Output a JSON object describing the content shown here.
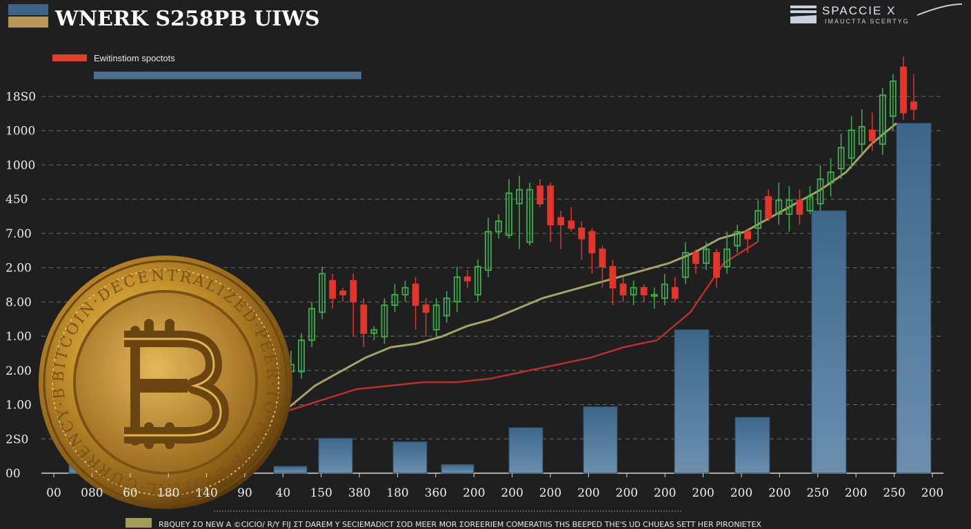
{
  "header": {
    "title": "WNERK S258PB UIWS",
    "title_swatches": [
      "#3f6384",
      "#b8965a"
    ],
    "brand_name": "SPACCIE X",
    "brand_tagline": "IMAUCTTA SCERTYG"
  },
  "legend": {
    "entries": [
      {
        "label": "Ewitinstiom spoctots",
        "color": "#e0402a"
      },
      {
        "label": "",
        "color": "#4a6d8c"
      }
    ]
  },
  "footer": {
    "note": "RBQUEY ΣO NEW A ©CICIO/ R/Y FIJ ΣT DAREM Y SECIEMADICT ΣOD MEER MOR ΣOREERIEM COMERATIIS THS BEEPED THE'S UD CHUEAS SETT HER PIRONIETEX",
    "swatch_color": "#a29b5e"
  },
  "colors": {
    "background": "#1f1f1f",
    "grid": "#6a6a6a",
    "candle_up": "#3fae4f",
    "candle_down": "#e2352b",
    "moving_avg_1": "#a6a468",
    "moving_avg_2": "#b8312c",
    "bar": "#4a7296",
    "coin_gold": "#c9962f"
  },
  "icons": {
    "coin": "bitcoin-coin-icon",
    "brand": "spacex-logo-icon"
  },
  "chart_data": {
    "type": "bar",
    "title": "WNERK S258PB UIWS",
    "y_tick_labels": [
      "18S0",
      "1000",
      "1000",
      "450",
      "7.00",
      "2.00",
      "8.00",
      "1.00",
      "2.00",
      "1.00",
      "2S0",
      "00"
    ],
    "x_tick_labels": [
      "00",
      "080",
      "60",
      "180",
      "140",
      "90",
      "40",
      "150",
      "380",
      "180",
      "360",
      "200",
      "200",
      "200",
      "200",
      "200",
      "200",
      "200",
      "200",
      "200",
      "250",
      "200",
      "250",
      "200"
    ],
    "ylim": [
      0,
      11
    ],
    "grid": "horizontal dashed",
    "legend_position": "top-left",
    "bars": {
      "values": [
        0.3,
        0.4,
        0.6,
        0.55,
        0.2,
        1.0,
        0.9,
        0.25,
        1.3,
        1.9,
        4.1,
        1.6,
        7.5,
        10.0
      ]
    },
    "candles": [
      {
        "o": 2.9,
        "c": 3.1,
        "h": 3.5,
        "l": 2.6
      },
      {
        "o": 2.9,
        "c": 3.8,
        "h": 4.0,
        "l": 2.7
      },
      {
        "o": 3.8,
        "c": 4.7,
        "h": 4.9,
        "l": 3.6
      },
      {
        "o": 4.6,
        "c": 5.7,
        "h": 5.9,
        "l": 4.4
      },
      {
        "o": 5.5,
        "c": 5.0,
        "h": 5.7,
        "l": 4.7
      },
      {
        "o": 5.2,
        "c": 5.1,
        "h": 5.3,
        "l": 4.9
      },
      {
        "o": 5.5,
        "c": 4.9,
        "h": 5.7,
        "l": 3.9
      },
      {
        "o": 4.8,
        "c": 4.0,
        "h": 5.0,
        "l": 3.6
      },
      {
        "o": 4.0,
        "c": 4.1,
        "h": 4.2,
        "l": 3.8
      },
      {
        "o": 3.9,
        "c": 4.8,
        "h": 5.0,
        "l": 3.7
      },
      {
        "o": 4.8,
        "c": 5.1,
        "h": 5.4,
        "l": 4.6
      },
      {
        "o": 5.1,
        "c": 5.3,
        "h": 5.5,
        "l": 4.9
      },
      {
        "o": 5.4,
        "c": 4.8,
        "h": 5.6,
        "l": 4.1
      },
      {
        "o": 4.8,
        "c": 4.6,
        "h": 5.0,
        "l": 3.9
      },
      {
        "o": 4.1,
        "c": 4.8,
        "h": 5.0,
        "l": 3.9
      },
      {
        "o": 4.5,
        "c": 5.0,
        "h": 5.2,
        "l": 4.3
      },
      {
        "o": 4.9,
        "c": 5.6,
        "h": 5.9,
        "l": 4.6
      },
      {
        "o": 5.6,
        "c": 5.5,
        "h": 5.8,
        "l": 5.3
      },
      {
        "o": 5.1,
        "c": 5.9,
        "h": 6.1,
        "l": 4.9
      },
      {
        "o": 5.8,
        "c": 6.9,
        "h": 7.3,
        "l": 5.6
      },
      {
        "o": 6.9,
        "c": 7.2,
        "h": 7.4,
        "l": 6.7
      },
      {
        "o": 6.8,
        "c": 8.0,
        "h": 8.4,
        "l": 6.7
      },
      {
        "o": 7.7,
        "c": 8.1,
        "h": 8.5,
        "l": 6.4
      },
      {
        "o": 6.6,
        "c": 8.1,
        "h": 8.3,
        "l": 6.5
      },
      {
        "o": 8.2,
        "c": 7.7,
        "h": 8.4,
        "l": 7.6
      },
      {
        "o": 8.2,
        "c": 7.1,
        "h": 8.3,
        "l": 6.6
      },
      {
        "o": 7.3,
        "c": 7.1,
        "h": 7.5,
        "l": 6.4
      },
      {
        "o": 7.2,
        "c": 7.0,
        "h": 7.6,
        "l": 6.9
      },
      {
        "o": 7.0,
        "c": 6.7,
        "h": 7.2,
        "l": 6.1
      },
      {
        "o": 6.9,
        "c": 6.3,
        "h": 7.0,
        "l": 5.7
      },
      {
        "o": 6.4,
        "c": 5.9,
        "h": 6.5,
        "l": 5.3
      },
      {
        "o": 5.9,
        "c": 5.3,
        "h": 6.1,
        "l": 4.8
      },
      {
        "o": 5.4,
        "c": 5.1,
        "h": 5.6,
        "l": 4.9
      },
      {
        "o": 5.1,
        "c": 5.3,
        "h": 5.5,
        "l": 4.8
      },
      {
        "o": 5.3,
        "c": 5.1,
        "h": 5.4,
        "l": 4.9
      },
      {
        "o": 5.1,
        "c": 5.1,
        "h": 5.3,
        "l": 4.7
      },
      {
        "o": 5.0,
        "c": 5.4,
        "h": 5.7,
        "l": 4.8
      },
      {
        "o": 5.3,
        "c": 5.0,
        "h": 5.6,
        "l": 4.9
      },
      {
        "o": 5.6,
        "c": 6.3,
        "h": 6.6,
        "l": 5.4
      },
      {
        "o": 6.3,
        "c": 6.0,
        "h": 6.4,
        "l": 5.7
      },
      {
        "o": 6.0,
        "c": 6.4,
        "h": 6.6,
        "l": 5.8
      },
      {
        "o": 6.3,
        "c": 5.6,
        "h": 6.4,
        "l": 5.3
      },
      {
        "o": 5.9,
        "c": 6.4,
        "h": 6.9,
        "l": 5.7
      },
      {
        "o": 6.5,
        "c": 6.9,
        "h": 7.1,
        "l": 6.3
      },
      {
        "o": 6.9,
        "c": 6.7,
        "h": 7.0,
        "l": 6.3
      },
      {
        "o": 7.0,
        "c": 7.5,
        "h": 7.8,
        "l": 6.6
      },
      {
        "o": 7.9,
        "c": 7.3,
        "h": 8.1,
        "l": 7.2
      },
      {
        "o": 7.4,
        "c": 7.8,
        "h": 8.3,
        "l": 7.1
      },
      {
        "o": 7.4,
        "c": 7.8,
        "h": 8.2,
        "l": 6.9
      },
      {
        "o": 7.8,
        "c": 7.4,
        "h": 8.1,
        "l": 7.1
      },
      {
        "o": 7.5,
        "c": 7.9,
        "h": 8.2,
        "l": 7.4
      },
      {
        "o": 7.7,
        "c": 8.4,
        "h": 8.8,
        "l": 7.5
      },
      {
        "o": 8.3,
        "c": 8.6,
        "h": 9.0,
        "l": 7.9
      },
      {
        "o": 8.7,
        "c": 9.3,
        "h": 9.7,
        "l": 8.4
      },
      {
        "o": 9.0,
        "c": 9.8,
        "h": 10.2,
        "l": 8.7
      },
      {
        "o": 9.4,
        "c": 9.9,
        "h": 10.4,
        "l": 9.1
      },
      {
        "o": 9.8,
        "c": 9.5,
        "h": 10.3,
        "l": 9.2
      },
      {
        "o": 9.4,
        "c": 10.8,
        "h": 11.0,
        "l": 9.1
      },
      {
        "o": 10.2,
        "c": 11.2,
        "h": 11.4,
        "l": 9.8
      },
      {
        "o": 11.6,
        "c": 10.3,
        "h": 11.9,
        "l": 10.1
      },
      {
        "o": 10.6,
        "c": 10.4,
        "h": 11.4,
        "l": 10.1
      }
    ],
    "moving_average_1": [
      1.9,
      2.5,
      2.9,
      3.3,
      3.6,
      3.7,
      3.9,
      4.2,
      4.4,
      4.7,
      5.0,
      5.2,
      5.4,
      5.6,
      5.8,
      6.0,
      6.3,
      6.7,
      6.9,
      7.3,
      7.7,
      8.1,
      8.6,
      9.4,
      10.0
    ],
    "moving_average_2": [
      1.8,
      2.1,
      2.4,
      2.5,
      2.6,
      2.6,
      2.7,
      2.9,
      3.1,
      3.3,
      3.6,
      3.8,
      4.6,
      6.0,
      6.6
    ]
  }
}
